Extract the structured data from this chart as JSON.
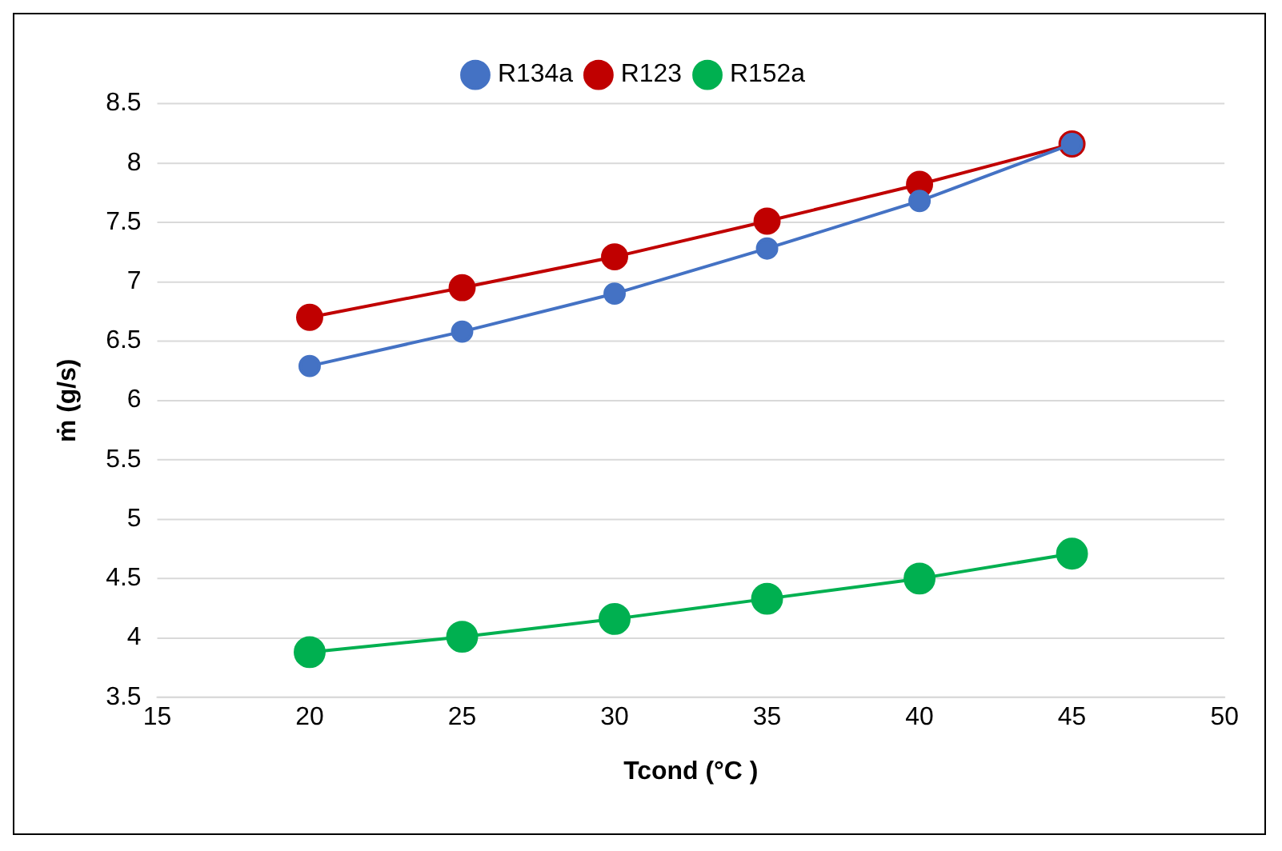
{
  "chart_data": {
    "type": "line",
    "xlabel": "Tcond (°C )",
    "ylabel": "ṁ (g/s)",
    "x": [
      20,
      25,
      30,
      35,
      40,
      45
    ],
    "series": [
      {
        "name": "R134a",
        "color": "#4472c4",
        "values": [
          6.29,
          6.58,
          6.9,
          7.28,
          7.68,
          8.16
        ]
      },
      {
        "name": "R123",
        "color": "#c00000",
        "values": [
          6.7,
          6.95,
          7.21,
          7.51,
          7.82,
          8.16
        ]
      },
      {
        "name": "R152a",
        "color": "#00b050",
        "values": [
          3.88,
          4.01,
          4.16,
          4.33,
          4.5,
          4.71
        ]
      }
    ],
    "xlim": [
      15,
      50
    ],
    "xticks": [
      15,
      20,
      25,
      30,
      35,
      40,
      45,
      50
    ],
    "ylim": [
      3.5,
      8.5
    ],
    "yticks": [
      3.5,
      4,
      4.5,
      5,
      5.5,
      6,
      6.5,
      7,
      7.5,
      8,
      8.5
    ],
    "grid": "y",
    "legend": "top",
    "marker": "circle",
    "line_style": "solid"
  }
}
